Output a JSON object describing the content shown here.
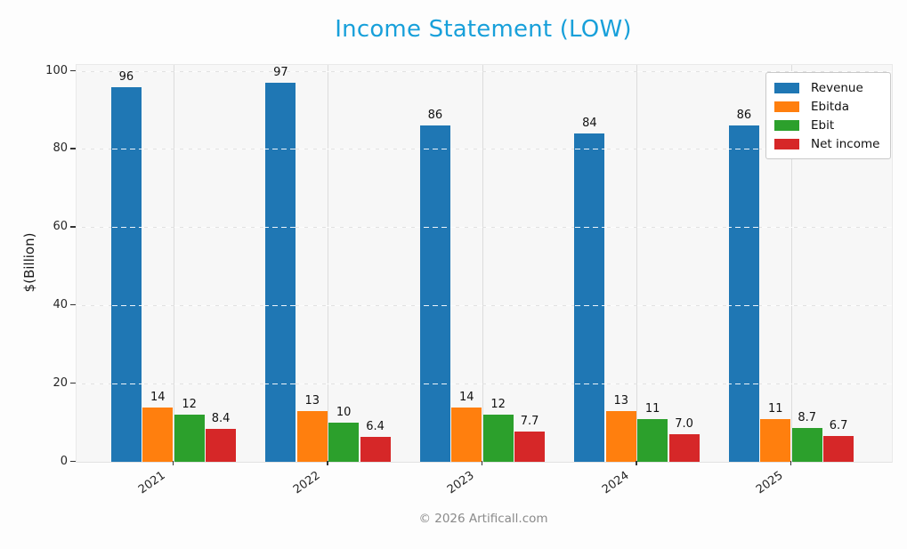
{
  "title": "Income Statement (LOW)",
  "y_axis_label": "$(Billion)",
  "footer": "© 2026 Artificall.com",
  "colors": {
    "title": "#18a0da",
    "plot_background": "#f7f7f7",
    "figure_background": "#fdfdfd"
  },
  "chart_data": {
    "type": "bar",
    "title": "Income Statement (LOW)",
    "xlabel": "",
    "ylabel": "$(Billion)",
    "categories": [
      "2021",
      "2022",
      "2023",
      "2024",
      "2025"
    ],
    "series": [
      {
        "name": "Revenue",
        "color": "#1f77b4",
        "values": [
          96,
          97,
          86,
          84,
          86
        ],
        "labels": [
          "96",
          "97",
          "86",
          "84",
          "86"
        ]
      },
      {
        "name": "Ebitda",
        "color": "#ff7f0e",
        "values": [
          14,
          13,
          14,
          13,
          11
        ],
        "labels": [
          "14",
          "13",
          "14",
          "13",
          "11"
        ]
      },
      {
        "name": "Ebit",
        "color": "#2ca02c",
        "values": [
          12,
          10,
          12,
          11,
          8.7
        ],
        "labels": [
          "12",
          "10",
          "12",
          "11",
          "8.7"
        ]
      },
      {
        "name": "Net income",
        "color": "#d62728",
        "values": [
          8.4,
          6.4,
          7.7,
          7.0,
          6.7
        ],
        "labels": [
          "8.4",
          "6.4",
          "7.7",
          "7.0",
          "6.7"
        ]
      }
    ],
    "ylim": [
      0,
      100
    ],
    "yticks": [
      0,
      20,
      40,
      60,
      80,
      100
    ],
    "grid": "horizontal dashed white, vertical solid light gray",
    "legend_position": "upper right",
    "x_tick_rotation_deg": 35
  }
}
